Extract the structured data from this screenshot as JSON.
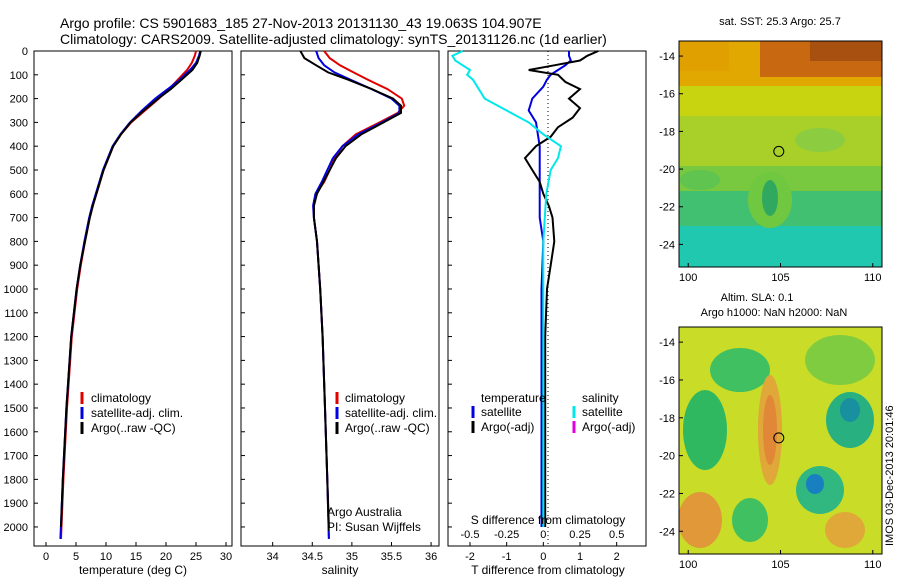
{
  "header": {
    "line1": "Argo profile: CS 5901683_185 27-Nov-2013 20131130_43 19.063S 104.907E",
    "line2": "Climatology: CARS2009. Satellite-adjusted climatology: synTS_20131126.nc (1d earlier)"
  },
  "side_label": "IMOS 03-Dec-2013 20:01:46",
  "colors": {
    "climatology": "#e00000",
    "satellite": "#0000e0",
    "argo": "#000000",
    "satellite_s": "#00e8e8",
    "argo_s_adj": "#e000e0"
  },
  "chart_data": [
    {
      "type": "line",
      "id": "temperature",
      "xlabel": "temperature (deg C)",
      "xlim": [
        -2,
        31
      ],
      "xticks": [
        0,
        5,
        10,
        15,
        20,
        25,
        30
      ],
      "ylim": [
        0,
        2080
      ],
      "yticks": [
        0,
        100,
        200,
        300,
        400,
        500,
        600,
        700,
        800,
        900,
        1000,
        1100,
        1200,
        1300,
        1400,
        1500,
        1600,
        1700,
        1800,
        1900,
        2000
      ],
      "y_reversed": true,
      "legend": {
        "placement": "lower-left",
        "entries": [
          "climatology",
          "satellite-adj. clim.",
          "Argo(..raw -QC)"
        ]
      },
      "series": [
        {
          "name": "climatology",
          "color": "#e00000",
          "depth": [
            0,
            20,
            50,
            80,
            120,
            160,
            200,
            250,
            300,
            350,
            400,
            500,
            600,
            650,
            700,
            800,
            900,
            1000,
            1200,
            1500,
            1800,
            2050
          ],
          "values": [
            25.0,
            24.8,
            24.3,
            23.5,
            22.0,
            20.5,
            18.8,
            16.5,
            14.2,
            12.5,
            11.2,
            9.6,
            8.4,
            7.8,
            7.3,
            6.5,
            5.8,
            5.2,
            4.3,
            3.5,
            2.9,
            2.5
          ]
        },
        {
          "name": "satellite-adj. clim.",
          "color": "#0000e0",
          "depth": [
            0,
            20,
            50,
            80,
            120,
            160,
            200,
            250,
            300,
            350,
            400,
            500,
            600,
            650,
            700,
            800,
            900,
            1000,
            1200,
            1500,
            1800,
            2050
          ],
          "values": [
            25.7,
            25.5,
            25.0,
            24.0,
            22.3,
            20.3,
            18.2,
            16.0,
            14.0,
            12.4,
            11.1,
            9.5,
            8.3,
            7.7,
            7.2,
            6.4,
            5.7,
            5.1,
            4.2,
            3.4,
            2.8,
            2.4
          ]
        },
        {
          "name": "Argo(..raw -QC)",
          "color": "#000000",
          "depth": [
            0,
            20,
            50,
            80,
            120,
            160,
            200,
            250,
            300,
            350,
            400,
            500,
            600,
            650,
            700,
            800,
            900,
            1000,
            1200,
            1500,
            1800,
            2000
          ],
          "values": [
            25.8,
            25.6,
            25.2,
            24.4,
            22.6,
            20.8,
            18.7,
            16.3,
            14.1,
            12.5,
            11.2,
            9.6,
            8.4,
            7.8,
            7.3,
            6.5,
            5.7,
            5.1,
            4.2,
            3.4,
            2.8,
            2.5
          ]
        }
      ]
    },
    {
      "type": "line",
      "id": "salinity",
      "xlabel": "salinity",
      "xlim": [
        33.6,
        36.1
      ],
      "xticks": [
        34,
        34.5,
        35,
        35.5,
        36
      ],
      "xticklabels": [
        "34",
        "34.5",
        "35",
        "35.5",
        "36"
      ],
      "ylim": [
        0,
        2080
      ],
      "y_reversed": true,
      "legend": {
        "placement": "lower-left",
        "entries": [
          "climatology",
          "satellite-adj. clim.",
          "Argo(..raw -QC)"
        ]
      },
      "annotation": [
        "Argo Australia",
        "PI: Susan Wijffels"
      ],
      "series": [
        {
          "name": "climatology",
          "color": "#e00000",
          "depth": [
            0,
            30,
            60,
            90,
            120,
            160,
            200,
            230,
            260,
            300,
            350,
            400,
            450,
            500,
            550,
            600,
            650,
            700,
            800,
            1000,
            1200,
            1500,
            1800,
            2050
          ],
          "values": [
            34.65,
            34.72,
            34.85,
            35.02,
            35.2,
            35.45,
            35.63,
            35.66,
            35.58,
            35.35,
            35.05,
            34.88,
            34.78,
            34.72,
            34.65,
            34.55,
            34.52,
            34.52,
            34.56,
            34.6,
            34.63,
            34.66,
            34.69,
            34.71
          ]
        },
        {
          "name": "satellite-adj. clim.",
          "color": "#0000e0",
          "depth": [
            0,
            30,
            60,
            90,
            120,
            160,
            200,
            230,
            260,
            300,
            350,
            400,
            450,
            500,
            550,
            600,
            650,
            700,
            800,
            1000,
            1200,
            1500,
            1800,
            2050
          ],
          "values": [
            34.55,
            34.58,
            34.65,
            34.78,
            34.98,
            35.25,
            35.5,
            35.6,
            35.6,
            35.38,
            35.08,
            34.88,
            34.76,
            34.69,
            34.62,
            34.54,
            34.51,
            34.52,
            34.56,
            34.6,
            34.63,
            34.66,
            34.69,
            34.71
          ]
        },
        {
          "name": "Argo(..raw -QC)",
          "color": "#000000",
          "depth": [
            0,
            30,
            60,
            90,
            120,
            160,
            200,
            230,
            260,
            300,
            350,
            400,
            450,
            500,
            550,
            600,
            650,
            700,
            800,
            1000,
            1200,
            1500,
            1800,
            2000
          ],
          "values": [
            34.35,
            34.4,
            34.55,
            34.7,
            34.95,
            35.25,
            35.52,
            35.62,
            35.62,
            35.4,
            35.12,
            34.92,
            34.8,
            34.72,
            34.64,
            34.56,
            34.52,
            34.52,
            34.56,
            34.6,
            34.63,
            34.66,
            34.69,
            34.71
          ]
        }
      ]
    },
    {
      "type": "line",
      "id": "difference",
      "xlabel": "T difference from climatology",
      "xlabel_top": "S difference from climatology",
      "xlim": [
        -2.6,
        2.8
      ],
      "xticks": [
        -2,
        -1,
        0,
        1,
        2
      ],
      "s_ticks": [
        -0.5,
        -0.25,
        0,
        0.25,
        0.5
      ],
      "s_ticklabels": [
        "-0.5",
        "-0.25",
        "0",
        "0.25",
        "0.5"
      ],
      "ylim": [
        0,
        2080
      ],
      "y_reversed": true,
      "legend": {
        "placement": "lower-center",
        "groups": [
          {
            "title": "temperature",
            "entries": [
              "satellite",
              "Argo(-adj)"
            ]
          },
          {
            "title": "salinity",
            "entries": [
              "satellite",
              "Argo(-adj)"
            ]
          }
        ]
      },
      "series": [
        {
          "name": "satellite",
          "quantity": "temperature",
          "color": "#0000e0",
          "depth": [
            0,
            20,
            40,
            60,
            80,
            100,
            120,
            150,
            200,
            250,
            300,
            400,
            500,
            600,
            700,
            800,
            1000,
            1500,
            2000
          ],
          "values": [
            0.7,
            0.7,
            0.75,
            0.6,
            0.4,
            0.2,
            0.1,
            0.0,
            -0.3,
            -0.4,
            -0.2,
            -0.1,
            -0.1,
            -0.1,
            -0.1,
            0.0,
            -0.05,
            -0.05,
            -0.05
          ]
        },
        {
          "name": "Argo(-adj)",
          "quantity": "temperature",
          "color": "#000000",
          "depth": [
            0,
            20,
            40,
            60,
            80,
            100,
            130,
            160,
            200,
            240,
            280,
            320,
            360,
            400,
            450,
            500,
            550,
            600,
            650,
            700,
            800,
            900,
            1000,
            1200,
            1500,
            1800,
            2000
          ],
          "values": [
            1.5,
            1.2,
            1.0,
            0.3,
            -0.4,
            0.4,
            0.6,
            1.0,
            0.7,
            1.0,
            0.8,
            0.4,
            0.2,
            -0.2,
            -0.5,
            -0.3,
            -0.1,
            0.0,
            0.15,
            0.25,
            0.3,
            0.2,
            0.1,
            0.05,
            0.05,
            0.05,
            0.05
          ]
        },
        {
          "name": "satellite",
          "quantity": "salinity",
          "color": "#00e8e8",
          "depth": [
            0,
            20,
            40,
            60,
            80,
            100,
            120,
            150,
            200,
            250,
            300,
            350,
            400,
            450,
            500,
            600,
            800,
            1000,
            1500,
            2000
          ],
          "values": [
            -0.55,
            -0.62,
            -0.6,
            -0.55,
            -0.5,
            -0.52,
            -0.48,
            -0.45,
            -0.4,
            -0.25,
            -0.1,
            0.0,
            0.12,
            0.1,
            0.05,
            0.02,
            0.0,
            0.0,
            0.0,
            0.0
          ]
        },
        {
          "name": "Argo(-adj)",
          "quantity": "salinity",
          "color": "#e000e0",
          "depth": [],
          "values": []
        }
      ]
    },
    {
      "type": "heatmap",
      "id": "sst_map",
      "title": "sat. SST: 25.3  Argo: 25.7",
      "xlim": [
        99.5,
        110.5
      ],
      "ylim": [
        -25.2,
        -13.2
      ],
      "xticks": [
        100,
        105,
        110
      ],
      "yticks": [
        -14,
        -16,
        -18,
        -20,
        -22,
        -24
      ],
      "profile_location": {
        "lon": 104.907,
        "lat": -19.063
      }
    },
    {
      "type": "heatmap",
      "id": "sla_map",
      "title": "Altim. SLA: 0.1",
      "subtitle": "Argo h1000: NaN  h2000: NaN",
      "xlim": [
        99.5,
        110.5
      ],
      "ylim": [
        -25.2,
        -13.2
      ],
      "xticks": [
        100,
        105,
        110
      ],
      "yticks": [
        -14,
        -16,
        -18,
        -20,
        -22,
        -24
      ],
      "profile_location": {
        "lon": 104.907,
        "lat": -19.063
      }
    }
  ]
}
